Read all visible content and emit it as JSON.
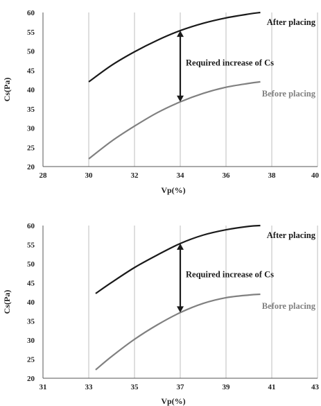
{
  "chart_data": [
    {
      "type": "line",
      "xlabel": "Vp(%)",
      "ylabel": "Cs(Pa)",
      "xlim": [
        28,
        40
      ],
      "ylim": [
        20,
        60
      ],
      "x_ticks": [
        "28",
        "30",
        "32",
        "34",
        "36",
        "38",
        "40"
      ],
      "y_ticks": [
        "20",
        "25",
        "30",
        "35",
        "40",
        "45",
        "50",
        "55",
        "60"
      ],
      "grid": "vertical",
      "series": [
        {
          "name": "After placing",
          "color": "#1a1a1a",
          "points": [
            [
              30,
              42
            ],
            [
              31,
              46.3
            ],
            [
              32,
              49.8
            ],
            [
              33,
              52.8
            ],
            [
              34,
              55.3
            ],
            [
              35,
              57.2
            ],
            [
              36,
              58.6
            ],
            [
              37,
              59.6
            ],
            [
              37.5,
              60
            ]
          ]
        },
        {
          "name": "Before placing",
          "color": "#808080",
          "points": [
            [
              30,
              22
            ],
            [
              31,
              26.6
            ],
            [
              32,
              30.5
            ],
            [
              33,
              34
            ],
            [
              34,
              36.8
            ],
            [
              35,
              39
            ],
            [
              36,
              40.6
            ],
            [
              37,
              41.6
            ],
            [
              37.5,
              42
            ]
          ]
        }
      ],
      "annotation": {
        "text": "Required increase of Cs",
        "x": 34,
        "from": 36.8,
        "to": 55.3
      }
    },
    {
      "type": "line",
      "xlabel": "Vp(%)",
      "ylabel": "Cs(Pa)",
      "xlim": [
        31,
        43
      ],
      "ylim": [
        20,
        60
      ],
      "x_ticks": [
        "31",
        "33",
        "35",
        "37",
        "39",
        "41",
        "43"
      ],
      "y_ticks": [
        "20",
        "25",
        "30",
        "35",
        "40",
        "45",
        "50",
        "55",
        "60"
      ],
      "grid": "vertical",
      "series": [
        {
          "name": "After placing",
          "color": "#1a1a1a",
          "points": [
            [
              33.3,
              42.2
            ],
            [
              34,
              45.1
            ],
            [
              35,
              49
            ],
            [
              36,
              52.3
            ],
            [
              37,
              55.3
            ],
            [
              38,
              57.5
            ],
            [
              39,
              58.9
            ],
            [
              40,
              59.8
            ],
            [
              40.5,
              60
            ]
          ]
        },
        {
          "name": "Before placing",
          "color": "#808080",
          "points": [
            [
              33.3,
              22.2
            ],
            [
              34,
              25.7
            ],
            [
              35,
              30.2
            ],
            [
              36,
              34
            ],
            [
              37,
              37.2
            ],
            [
              38,
              39.6
            ],
            [
              39,
              41.1
            ],
            [
              40,
              41.8
            ],
            [
              40.5,
              42
            ]
          ]
        }
      ],
      "annotation": {
        "text": "Required increase of Cs",
        "x": 37,
        "from": 37.2,
        "to": 55.3
      }
    }
  ]
}
